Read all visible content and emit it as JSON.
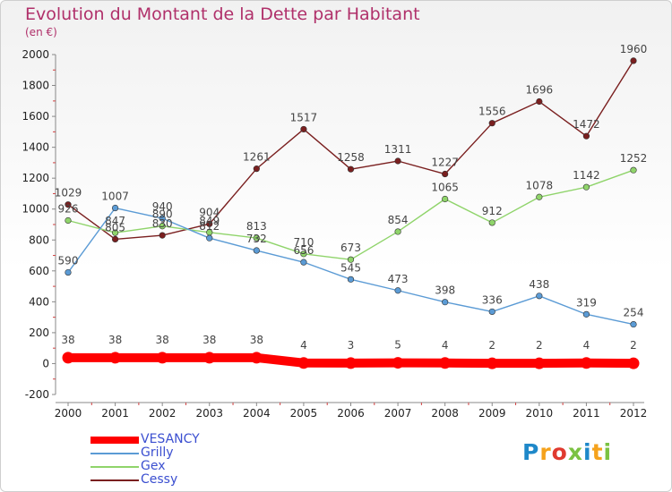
{
  "title": "Evolution du Montant de la Dette par Habitant",
  "unit": "(en €)",
  "logo": {
    "text": "Proxiti",
    "colors": [
      "#1e88c9",
      "#f5a21c",
      "#e03a2f",
      "#7bc242",
      "#1e88c9",
      "#f5a21c",
      "#7bc242"
    ]
  },
  "chart_data": {
    "type": "line",
    "x": [
      2000,
      2001,
      2002,
      2003,
      2004,
      2005,
      2006,
      2007,
      2008,
      2009,
      2010,
      2011,
      2012
    ],
    "ylim": [
      -200,
      2000
    ],
    "yticks": [
      -200,
      0,
      200,
      400,
      600,
      800,
      1000,
      1200,
      1400,
      1600,
      1800,
      2000
    ],
    "grid": false,
    "legend": "bottom-left",
    "series": [
      {
        "name": "Cessy",
        "color": "#7a1f1f",
        "values": [
          1029,
          805,
          830,
          904,
          1261,
          1517,
          1258,
          1311,
          1227,
          1556,
          1696,
          1472,
          1960
        ]
      },
      {
        "name": "Gex",
        "color": "#8fd46a",
        "values": [
          926,
          847,
          890,
          849,
          813,
          710,
          673,
          854,
          1065,
          912,
          1078,
          1142,
          1252
        ]
      },
      {
        "name": "Grilly",
        "color": "#5b9bd5",
        "values": [
          590,
          1007,
          940,
          812,
          732,
          656,
          545,
          473,
          398,
          336,
          438,
          319,
          254
        ]
      },
      {
        "name": "VESANCY",
        "color": "#ff0000",
        "values": [
          38,
          38,
          38,
          38,
          38,
          4,
          3,
          5,
          4,
          2,
          2,
          4,
          2
        ]
      }
    ]
  }
}
